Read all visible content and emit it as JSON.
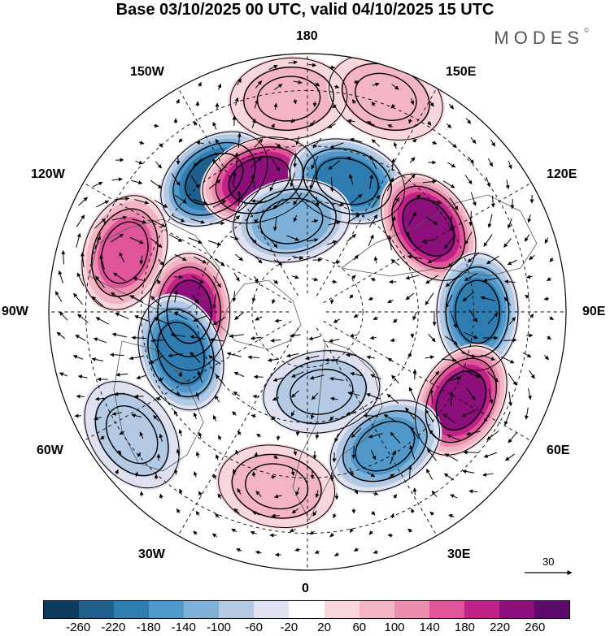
{
  "title": "Base 03/10/2025 00 UTC, valid 04/10/2025 15 UTC",
  "brand": "MODES",
  "brand_mark": "©",
  "longitudes": {
    "top": "180",
    "bottom": "0",
    "left": "90W",
    "right": "90E",
    "upper_left_1": "150W",
    "upper_left_2": "120W",
    "upper_right_1": "150E",
    "upper_right_2": "120E",
    "lower_left_1": "60W",
    "lower_left_2": "30W",
    "lower_right_1": "60E",
    "lower_right_2": "30E"
  },
  "vector_reference": "30",
  "colorbar": {
    "ticks": [
      "-260",
      "-220",
      "-180",
      "-140",
      "-100",
      "-60",
      "-20",
      "20",
      "60",
      "100",
      "140",
      "180",
      "220",
      "260"
    ],
    "colors": [
      "#0d3b5e",
      "#1f5f8b",
      "#2e7cb0",
      "#4f98c9",
      "#7fb1d8",
      "#b3c9e4",
      "#dfe0f0",
      "#ffffff",
      "#f7d7dc",
      "#f3b5c3",
      "#ec8eb0",
      "#e0559a",
      "#c02288",
      "#8c0f7c",
      "#5c0a6b"
    ]
  },
  "anomalies": [
    {
      "name": "low-west-canada-north",
      "lon": -145,
      "colat": 44,
      "value": -240
    },
    {
      "name": "high-alaska-gulf",
      "lon": -160,
      "colat": 38,
      "value": 240
    },
    {
      "name": "high-pacific-northwest",
      "lon": -108,
      "colat": 52,
      "value": 160
    },
    {
      "name": "high-hudson-west",
      "lon": -90,
      "colat": 32,
      "value": 240
    },
    {
      "name": "low-newfoundland",
      "lon": -72,
      "colat": 36,
      "value": -200
    },
    {
      "name": "low-bering",
      "lon": 163,
      "colat": 37,
      "value": -190
    },
    {
      "name": "high-siberia-east",
      "lon": 125,
      "colat": 40,
      "value": 220
    },
    {
      "name": "low-siberia-central",
      "lon": 90,
      "colat": 46,
      "value": -210
    },
    {
      "name": "high-kazakhstan",
      "lon": 60,
      "colat": 48,
      "value": 250
    },
    {
      "name": "low-caspian",
      "lon": 30,
      "colat": 42,
      "value": -170
    },
    {
      "name": "low-greenland-sea",
      "lon": -170,
      "colat": 25,
      "value": -110
    },
    {
      "name": "high-north-atlantic",
      "lon": -10,
      "colat": 48,
      "value": 60
    },
    {
      "name": "high-aleutian",
      "lon": -175,
      "colat": 58,
      "value": 60
    },
    {
      "name": "high-east-pacific",
      "lon": 160,
      "colat": 62,
      "value": 60
    },
    {
      "name": "low-scandinavia",
      "lon": 10,
      "colat": 22,
      "value": -60
    },
    {
      "name": "low-atlantic-sw",
      "lon": -55,
      "colat": 58,
      "value": -60
    }
  ]
}
